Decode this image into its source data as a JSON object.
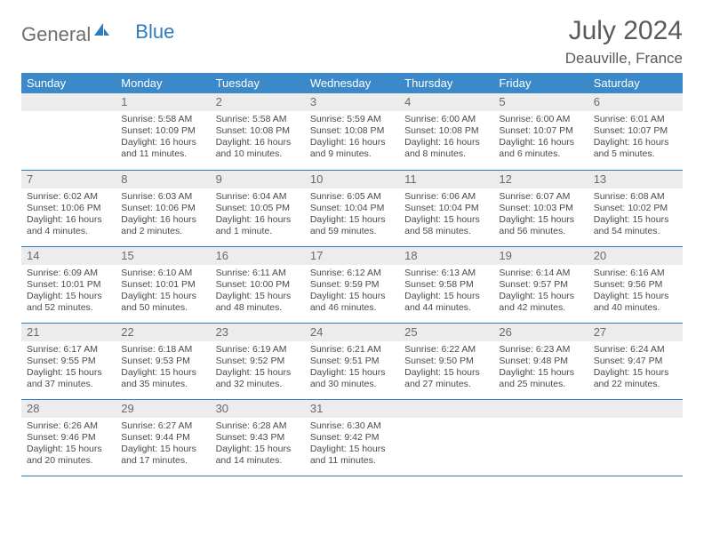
{
  "logo": {
    "general": "General",
    "blue": "Blue"
  },
  "title": "July 2024",
  "location": "Deauville, France",
  "colors": {
    "header_bg": "#3b89c9",
    "row_border": "#2e7bc0",
    "daynum_bg": "#ececec"
  },
  "weekdays": [
    "Sunday",
    "Monday",
    "Tuesday",
    "Wednesday",
    "Thursday",
    "Friday",
    "Saturday"
  ],
  "weeks": [
    [
      null,
      {
        "n": "1",
        "sr": "5:58 AM",
        "ss": "10:09 PM",
        "dl": "16 hours and 11 minutes."
      },
      {
        "n": "2",
        "sr": "5:58 AM",
        "ss": "10:08 PM",
        "dl": "16 hours and 10 minutes."
      },
      {
        "n": "3",
        "sr": "5:59 AM",
        "ss": "10:08 PM",
        "dl": "16 hours and 9 minutes."
      },
      {
        "n": "4",
        "sr": "6:00 AM",
        "ss": "10:08 PM",
        "dl": "16 hours and 8 minutes."
      },
      {
        "n": "5",
        "sr": "6:00 AM",
        "ss": "10:07 PM",
        "dl": "16 hours and 6 minutes."
      },
      {
        "n": "6",
        "sr": "6:01 AM",
        "ss": "10:07 PM",
        "dl": "16 hours and 5 minutes."
      }
    ],
    [
      {
        "n": "7",
        "sr": "6:02 AM",
        "ss": "10:06 PM",
        "dl": "16 hours and 4 minutes."
      },
      {
        "n": "8",
        "sr": "6:03 AM",
        "ss": "10:06 PM",
        "dl": "16 hours and 2 minutes."
      },
      {
        "n": "9",
        "sr": "6:04 AM",
        "ss": "10:05 PM",
        "dl": "16 hours and 1 minute."
      },
      {
        "n": "10",
        "sr": "6:05 AM",
        "ss": "10:04 PM",
        "dl": "15 hours and 59 minutes."
      },
      {
        "n": "11",
        "sr": "6:06 AM",
        "ss": "10:04 PM",
        "dl": "15 hours and 58 minutes."
      },
      {
        "n": "12",
        "sr": "6:07 AM",
        "ss": "10:03 PM",
        "dl": "15 hours and 56 minutes."
      },
      {
        "n": "13",
        "sr": "6:08 AM",
        "ss": "10:02 PM",
        "dl": "15 hours and 54 minutes."
      }
    ],
    [
      {
        "n": "14",
        "sr": "6:09 AM",
        "ss": "10:01 PM",
        "dl": "15 hours and 52 minutes."
      },
      {
        "n": "15",
        "sr": "6:10 AM",
        "ss": "10:01 PM",
        "dl": "15 hours and 50 minutes."
      },
      {
        "n": "16",
        "sr": "6:11 AM",
        "ss": "10:00 PM",
        "dl": "15 hours and 48 minutes."
      },
      {
        "n": "17",
        "sr": "6:12 AM",
        "ss": "9:59 PM",
        "dl": "15 hours and 46 minutes."
      },
      {
        "n": "18",
        "sr": "6:13 AM",
        "ss": "9:58 PM",
        "dl": "15 hours and 44 minutes."
      },
      {
        "n": "19",
        "sr": "6:14 AM",
        "ss": "9:57 PM",
        "dl": "15 hours and 42 minutes."
      },
      {
        "n": "20",
        "sr": "6:16 AM",
        "ss": "9:56 PM",
        "dl": "15 hours and 40 minutes."
      }
    ],
    [
      {
        "n": "21",
        "sr": "6:17 AM",
        "ss": "9:55 PM",
        "dl": "15 hours and 37 minutes."
      },
      {
        "n": "22",
        "sr": "6:18 AM",
        "ss": "9:53 PM",
        "dl": "15 hours and 35 minutes."
      },
      {
        "n": "23",
        "sr": "6:19 AM",
        "ss": "9:52 PM",
        "dl": "15 hours and 32 minutes."
      },
      {
        "n": "24",
        "sr": "6:21 AM",
        "ss": "9:51 PM",
        "dl": "15 hours and 30 minutes."
      },
      {
        "n": "25",
        "sr": "6:22 AM",
        "ss": "9:50 PM",
        "dl": "15 hours and 27 minutes."
      },
      {
        "n": "26",
        "sr": "6:23 AM",
        "ss": "9:48 PM",
        "dl": "15 hours and 25 minutes."
      },
      {
        "n": "27",
        "sr": "6:24 AM",
        "ss": "9:47 PM",
        "dl": "15 hours and 22 minutes."
      }
    ],
    [
      {
        "n": "28",
        "sr": "6:26 AM",
        "ss": "9:46 PM",
        "dl": "15 hours and 20 minutes."
      },
      {
        "n": "29",
        "sr": "6:27 AM",
        "ss": "9:44 PM",
        "dl": "15 hours and 17 minutes."
      },
      {
        "n": "30",
        "sr": "6:28 AM",
        "ss": "9:43 PM",
        "dl": "15 hours and 14 minutes."
      },
      {
        "n": "31",
        "sr": "6:30 AM",
        "ss": "9:42 PM",
        "dl": "15 hours and 11 minutes."
      },
      null,
      null,
      null
    ]
  ]
}
